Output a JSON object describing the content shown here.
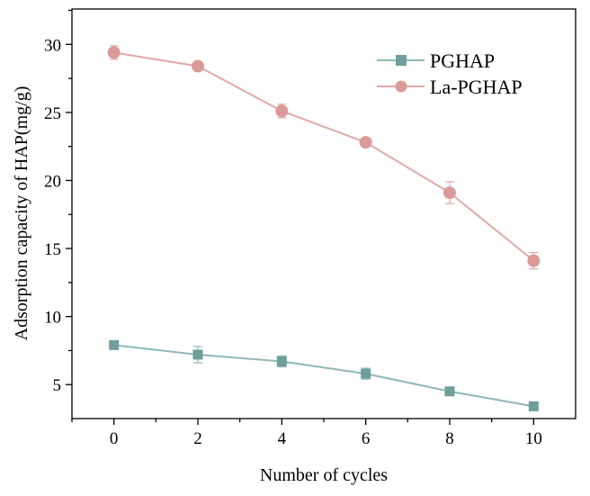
{
  "chart_data": {
    "type": "line",
    "title": "",
    "xlabel": "Number of cycles",
    "ylabel": "Adsorption capacity of HAP(mg/g)",
    "xlim": [
      -1,
      11
    ],
    "ylim": [
      2.5,
      32.6
    ],
    "x_ticks": [
      0,
      2,
      4,
      6,
      8,
      10
    ],
    "y_ticks": [
      5,
      10,
      15,
      20,
      25,
      30
    ],
    "grid": false,
    "legend_position": "top-right",
    "x": [
      0,
      2,
      4,
      6,
      8,
      10
    ],
    "series": [
      {
        "name": "PGHAP",
        "marker": "square",
        "color": "#6f9e9c",
        "line_color": "#8fb8b8",
        "values": [
          7.9,
          7.2,
          6.7,
          5.8,
          4.5,
          3.4
        ],
        "errors": [
          0.3,
          0.6,
          0.4,
          0.4,
          0.1,
          0.3
        ]
      },
      {
        "name": "La-PGHAP",
        "marker": "circle",
        "color": "#d99a98",
        "line_color": "#e0a9a7",
        "values": [
          29.4,
          28.4,
          25.1,
          22.8,
          19.1,
          14.1
        ],
        "errors": [
          0.5,
          0.2,
          0.5,
          0.3,
          0.8,
          0.6
        ]
      }
    ]
  }
}
